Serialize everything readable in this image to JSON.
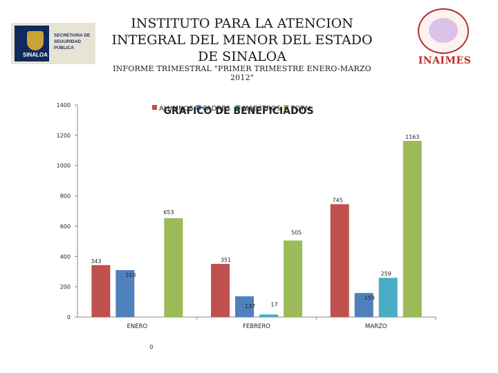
{
  "header": {
    "title": "INSTITUTO PARA LA ATENCION INTEGRAL DEL MENOR DEL ESTADO DE SINALOA",
    "subtitle": "INFORME TRIMESTRAL \"PRIMER TRIMESTRE ENERO-MARZO 2012\""
  },
  "logo_left": {
    "emblem_text": "SINALOA",
    "secretaria": "SECRETARIA DE SEGURIDAD PÚBLICA"
  },
  "logo_right": {
    "name": "INAIMES"
  },
  "colors": {
    "alumnos": "#c0504d",
    "padres": "#4f81bd",
    "maestros": "#4bacc6",
    "total": "#9bbb59",
    "brand_red": "#c0282d"
  },
  "chart_data": {
    "type": "bar",
    "title": "GRAFICO DE BENEFICIADOS",
    "categories": [
      "ENERO",
      "FEBRERO",
      "MARZO"
    ],
    "series": [
      {
        "name": "ALUMNOS",
        "values": [
          343,
          351,
          745
        ]
      },
      {
        "name": "PADRES",
        "values": [
          310,
          137,
          159
        ]
      },
      {
        "name": "MAESTROS",
        "values": [
          0,
          17,
          259
        ]
      },
      {
        "name": "TOTAL",
        "values": [
          653,
          505,
          1163
        ]
      }
    ],
    "ylim": [
      0,
      1400
    ],
    "yticks": [
      0,
      200,
      400,
      600,
      800,
      1000,
      1200,
      1400
    ],
    "legend_position": "top",
    "xlabel": "",
    "ylabel": ""
  }
}
